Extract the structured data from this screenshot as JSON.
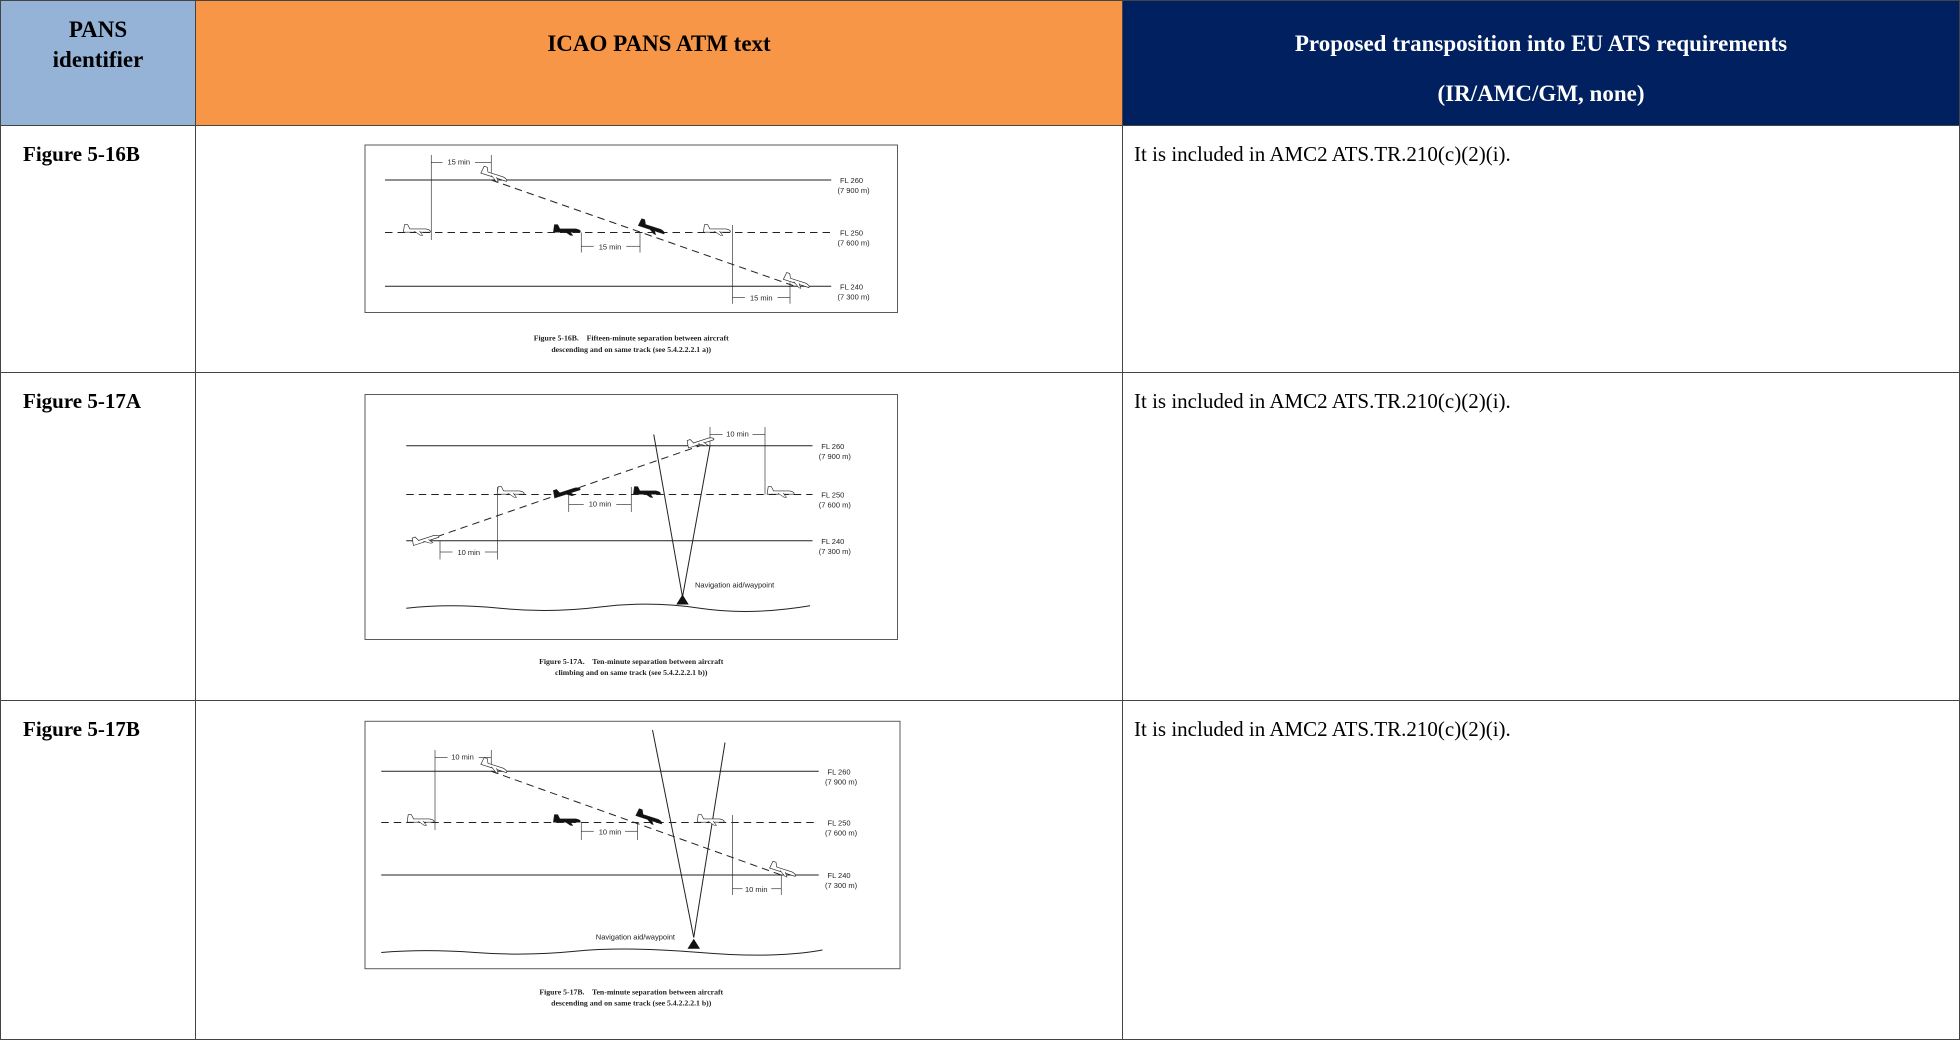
{
  "header": {
    "identifier": "PANS identifier",
    "text": "ICAO PANS ATM text",
    "transposition": "Proposed transposition into EU ATS requirements (IR/AMC/GM, none)"
  },
  "rows": [
    {
      "identifier": "Figure 5-16B",
      "figure": {
        "labels": [
          "15 min",
          "15 min",
          "15 min",
          "FL 260",
          "(7 900 m)",
          "FL 250",
          "(7 600 m)",
          "FL 240",
          "(7 300 m)"
        ],
        "caption": [
          "Figure 5-16B.    Fifteen-minute separation between aircraft",
          "descending and on same track (see 5.4.2.2.2.1 a))"
        ]
      },
      "transposition": "It is included in AMC2 ATS.TR.210(c)(2)(i)."
    },
    {
      "identifier": "Figure 5-17A",
      "figure": {
        "labels": [
          "10 min",
          "10 min",
          "10 min",
          "FL 260",
          "(7 900 m)",
          "FL 250",
          "(7 600 m)",
          "FL 240",
          "(7 300 m)",
          "Navigation aid/waypoint"
        ],
        "caption": [
          "Figure 5-17A.    Ten-minute separation between aircraft",
          "climbing and on same track (see 5.4.2.2.2.1 b))"
        ]
      },
      "transposition": "It is included in AMC2 ATS.TR.210(c)(2)(i)."
    },
    {
      "identifier": "Figure 5-17B",
      "figure": {
        "labels": [
          "10 min",
          "10 min",
          "10 min",
          "FL 260",
          "(7 900 m)",
          "FL 250",
          "(7 600 m)",
          "FL 240",
          "(7 300 m)",
          "Navigation aid/waypoint"
        ],
        "caption": [
          "Figure 5-17B.    Ten-minute separation between aircraft",
          "descending and on same track (see 5.4.2.2.2.1 b))"
        ]
      },
      "transposition": "It is included in AMC2 ATS.TR.210(c)(2)(i)."
    }
  ]
}
